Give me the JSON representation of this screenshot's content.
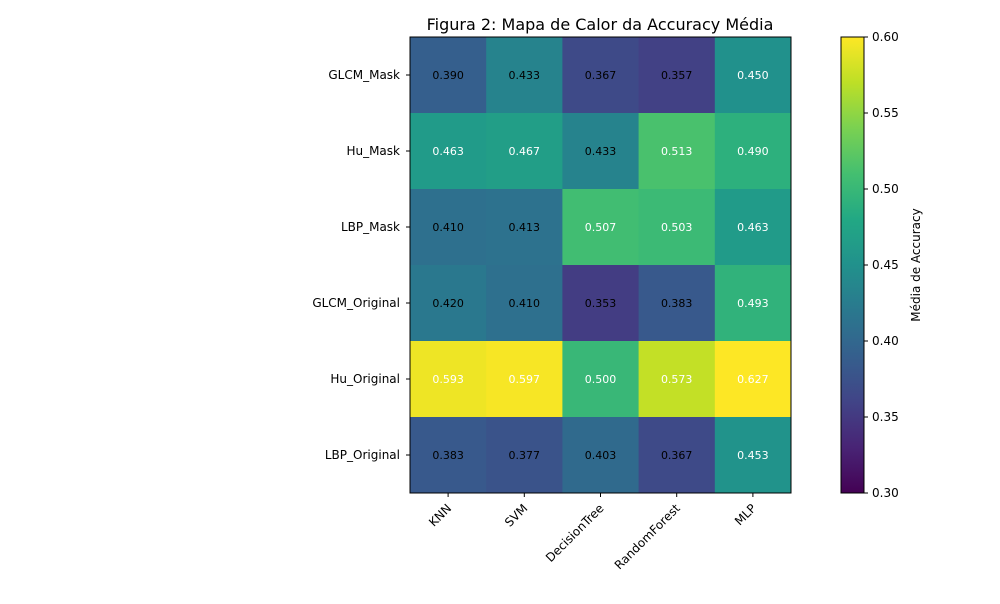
{
  "chart_data": {
    "type": "heatmap",
    "title": "Figura 2: Mapa de Calor da Accuracy Média",
    "xlabel": "",
    "ylabel": "",
    "x_categories": [
      "KNN",
      "SVM",
      "DecisionTree",
      "RandomForest",
      "MLP"
    ],
    "y_categories": [
      "GLCM_Mask",
      "Hu_Mask",
      "LBP_Mask",
      "GLCM_Original",
      "Hu_Original",
      "LBP_Original"
    ],
    "values": [
      [
        0.39,
        0.433,
        0.367,
        0.357,
        0.45
      ],
      [
        0.463,
        0.467,
        0.433,
        0.513,
        0.49
      ],
      [
        0.41,
        0.413,
        0.507,
        0.503,
        0.463
      ],
      [
        0.42,
        0.41,
        0.353,
        0.383,
        0.493
      ],
      [
        0.593,
        0.597,
        0.5,
        0.573,
        0.627
      ],
      [
        0.383,
        0.377,
        0.403,
        0.367,
        0.453
      ]
    ],
    "value_labels": [
      [
        "0.390",
        "0.433",
        "0.367",
        "0.357",
        "0.450"
      ],
      [
        "0.463",
        "0.467",
        "0.433",
        "0.513",
        "0.490"
      ],
      [
        "0.410",
        "0.413",
        "0.507",
        "0.503",
        "0.463"
      ],
      [
        "0.420",
        "0.410",
        "0.353",
        "0.383",
        "0.493"
      ],
      [
        "0.593",
        "0.597",
        "0.500",
        "0.573",
        "0.627"
      ],
      [
        "0.383",
        "0.377",
        "0.403",
        "0.367",
        "0.453"
      ]
    ],
    "colormap": "viridis",
    "vmin": 0.3,
    "vmax": 0.6,
    "colorbar": {
      "label": "Média de Accuracy",
      "ticks": [
        0.3,
        0.35,
        0.4,
        0.45,
        0.5,
        0.55,
        0.6
      ],
      "tick_labels": [
        "0.30",
        "0.35",
        "0.40",
        "0.45",
        "0.50",
        "0.55",
        "0.60"
      ]
    },
    "grid": false,
    "legend": "colorbar-right"
  }
}
